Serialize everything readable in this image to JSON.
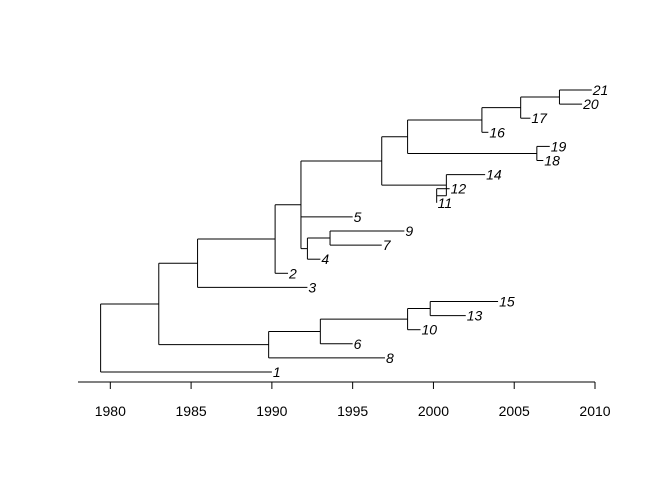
{
  "tree": {
    "edges": [
      {
        "from": 1979.4,
        "to": 1983.0,
        "node": "A"
      },
      {
        "from": 1979.4,
        "to": 1990.0,
        "node": "1"
      },
      {
        "from": 1983.0,
        "to": 1985.4,
        "node": "B"
      },
      {
        "from": 1983.0,
        "to": 1989.8,
        "node": "C"
      },
      {
        "from": 1985.4,
        "to": 1990.2,
        "node": "D"
      },
      {
        "from": 1985.4,
        "to": 1992.2,
        "node": "3"
      },
      {
        "from": 1990.2,
        "to": 1991.8,
        "node": "E"
      },
      {
        "from": 1990.2,
        "to": 1991.0,
        "node": "2"
      },
      {
        "from": 1991.8,
        "to": 1996.8,
        "node": "F"
      },
      {
        "from": 1991.8,
        "to": 1995.0,
        "node": "5"
      },
      {
        "from": 1996.8,
        "to": 1998.4,
        "node": "G"
      },
      {
        "from": 1996.8,
        "to": 2000.8,
        "node": "H"
      },
      {
        "from": 1998.4,
        "to": 2003.0,
        "node": "I"
      },
      {
        "from": 1998.4,
        "to": 2006.4,
        "node": "J"
      },
      {
        "from": 2003.0,
        "to": 2005.4,
        "node": "K"
      },
      {
        "from": 2003.0,
        "to": 2003.4,
        "node": "16"
      },
      {
        "from": 2005.4,
        "to": 2007.8,
        "node": "L"
      },
      {
        "from": 2005.4,
        "to": 2006.0,
        "node": "17"
      },
      {
        "from": 2007.8,
        "to": 2009.8,
        "node": "21"
      },
      {
        "from": 2007.8,
        "to": 2009.2,
        "node": "20"
      },
      {
        "from": 2006.4,
        "to": 2007.2,
        "node": "19"
      },
      {
        "from": 2006.4,
        "to": 2006.8,
        "node": "18"
      },
      {
        "from": 2000.8,
        "to": 2003.2,
        "node": "14"
      },
      {
        "from": 2000.8,
        "to": 2000.2,
        "node": "M"
      },
      {
        "from": 2000.2,
        "to": 2001.0,
        "node": "12"
      },
      {
        "from": 2000.2,
        "to": 2000.2,
        "node": "11"
      },
      {
        "from": 1991.8,
        "to": 1992.2,
        "node": "N"
      },
      {
        "from": 1992.2,
        "to": 1993.6,
        "node": "O"
      },
      {
        "from": 1992.2,
        "to": 1993.0,
        "node": "4"
      },
      {
        "from": 1993.6,
        "to": 1998.2,
        "node": "9"
      },
      {
        "from": 1993.6,
        "to": 1996.8,
        "node": "7"
      },
      {
        "from": 1989.8,
        "to": 1993.0,
        "node": "P"
      },
      {
        "from": 1989.8,
        "to": 1997.0,
        "node": "8"
      },
      {
        "from": 1993.0,
        "to": 1998.4,
        "node": "Q"
      },
      {
        "from": 1993.0,
        "to": 1995.0,
        "node": "6"
      },
      {
        "from": 1998.4,
        "to": 1999.8,
        "node": "R"
      },
      {
        "from": 1998.4,
        "to": 1999.2,
        "node": "10"
      },
      {
        "from": 1999.8,
        "to": 2004.0,
        "node": "15"
      },
      {
        "from": 1999.8,
        "to": 2002.0,
        "node": "13"
      }
    ],
    "tips": [
      "1",
      "2",
      "3",
      "4",
      "5",
      "6",
      "7",
      "8",
      "9",
      "10",
      "11",
      "12",
      "13",
      "14",
      "15",
      "16",
      "17",
      "18",
      "19",
      "20",
      "21"
    ],
    "tip_order_top_to_bottom": [
      "21",
      "20",
      "17",
      "16",
      "19",
      "18",
      "14",
      "12",
      "11",
      "5",
      "9",
      "7",
      "4",
      "2",
      "3",
      "15",
      "13",
      "10",
      "6",
      "8",
      "1"
    ]
  },
  "axis": {
    "min": 1978,
    "max": 2010,
    "ticks": [
      1980,
      1985,
      1990,
      1995,
      2000,
      2005,
      2010
    ],
    "tick_labels": [
      "1980",
      "1985",
      "1990",
      "1995",
      "2000",
      "2005",
      "2010"
    ]
  }
}
